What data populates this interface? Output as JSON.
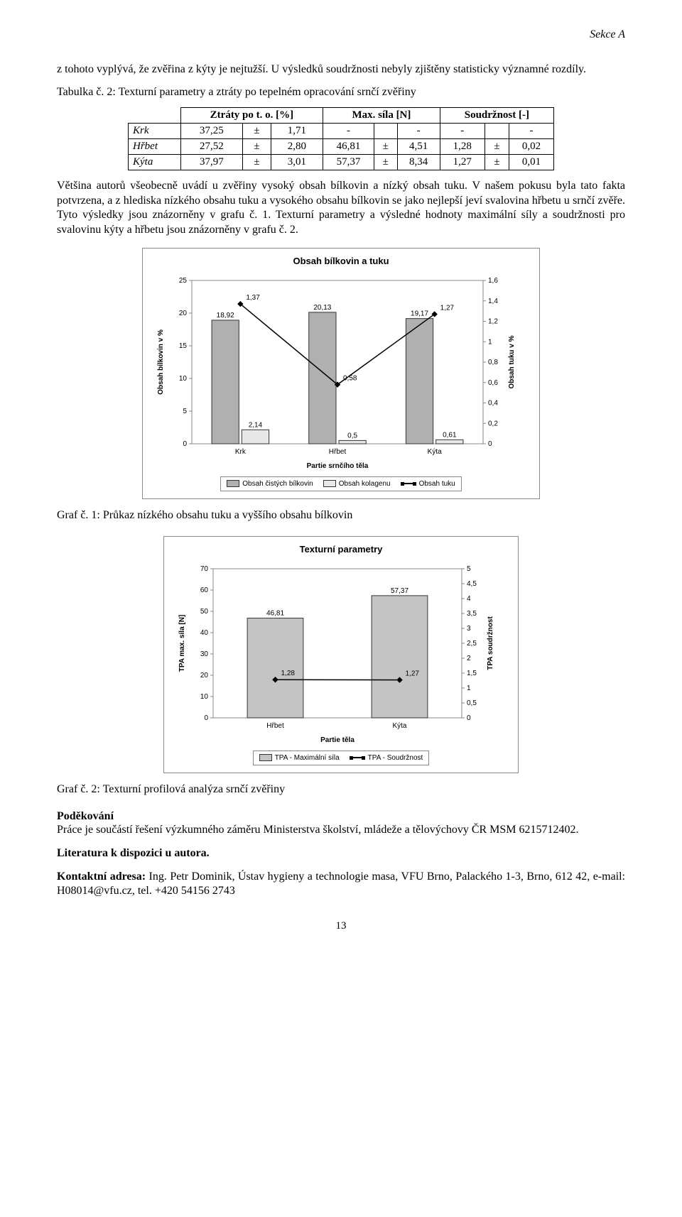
{
  "header": {
    "section": "Sekce A"
  },
  "para1": "z tohoto vyplývá, že zvěřina z kýty je nejtužší. U výsledků soudržnosti nebyly zjištěny statisticky významné rozdíly.",
  "table_caption": "Tabulka č. 2: Texturní parametry a ztráty po tepelném opracování srnčí zvěřiny",
  "table": {
    "col1": "Ztráty po t. o. [%]",
    "col2": "Max. síla [N]",
    "col3": "Soudržnost [-]",
    "rows": [
      {
        "label": "Krk",
        "v1": "37,25",
        "pm1": "±",
        "d1": "1,71",
        "v2": "-",
        "pm2": "",
        "d2": "-",
        "v3": "-",
        "pm3": "",
        "d3": "-"
      },
      {
        "label": "Hřbet",
        "v1": "27,52",
        "pm1": "±",
        "d1": "2,80",
        "v2": "46,81",
        "pm2": "±",
        "d2": "4,51",
        "v3": "1,28",
        "pm3": "±",
        "d3": "0,02"
      },
      {
        "label": "Kýta",
        "v1": "37,97",
        "pm1": "±",
        "d1": "3,01",
        "v2": "57,37",
        "pm2": "±",
        "d2": "8,34",
        "v3": "1,27",
        "pm3": "±",
        "d3": "0,01"
      }
    ]
  },
  "para2": "Většina autorů všeobecně uvádí u zvěřiny vysoký obsah bílkovin a nízký obsah tuku. V našem pokusu byla tato fakta potvrzena, a z hlediska nízkého obsahu tuku a vysokého obsahu bílkovin se jako nejlepší jeví svalovina hřbetu u srnčí zvěře. Tyto výsledky jsou znázorněny v grafu č. 1. Texturní parametry a výsledné hodnoty maximální síly a soudržnosti pro svalovinu kýty a hřbetu jsou znázorněny v grafu č. 2.",
  "chart1": {
    "type": "bar+line",
    "title": "Obsah bílkovin a tuku",
    "categories": [
      "Krk",
      "Hřbet",
      "Kýta"
    ],
    "bar1_values": [
      18.92,
      20.13,
      19.17
    ],
    "bar1_labels": [
      "18,92",
      "20,13",
      "19,17"
    ],
    "bar2_values": [
      2.14,
      0.5,
      0.61
    ],
    "bar2_labels": [
      "2,14",
      "0,5",
      "0,61"
    ],
    "line_values": [
      1.37,
      0.58,
      1.27
    ],
    "line_labels": [
      "1,37",
      "0,58",
      "1,27"
    ],
    "y1_label": "Obsah bílkovin v %",
    "y2_label": "Obsah tuku v %",
    "x_label": "Partie srnčího těla",
    "y1_ticks": [
      0,
      5,
      10,
      15,
      20,
      25
    ],
    "y2_ticks": [
      "0",
      "0,2",
      "0,4",
      "0,6",
      "0,8",
      "1",
      "1,2",
      "1,4",
      "1,6"
    ],
    "y1_max": 25,
    "y2_max": 1.6,
    "bar1_color": "#b0b0b0",
    "bar2_color": "#e8e8e8",
    "line_color": "#000000",
    "border_color": "#333333",
    "legend": [
      "Obsah čistých bílkovin",
      "Obsah kolagenu",
      "Obsah tuku"
    ]
  },
  "caption1": "Graf č. 1: Průkaz nízkého obsahu tuku a vyššího obsahu bílkovin",
  "chart2": {
    "type": "bar+line",
    "title": "Texturní parametry",
    "categories": [
      "Hřbet",
      "Kýta"
    ],
    "bar_values": [
      46.81,
      57.37
    ],
    "bar_labels": [
      "46,81",
      "57,37"
    ],
    "line_values": [
      1.28,
      1.27
    ],
    "line_labels": [
      "1,28",
      "1,27"
    ],
    "y1_label": "TPA max. síla [N]",
    "y2_label": "TPA soudržnost",
    "x_label": "Partie těla",
    "y1_ticks": [
      0,
      10,
      20,
      30,
      40,
      50,
      60,
      70
    ],
    "y2_ticks": [
      "0",
      "0,5",
      "1",
      "1,5",
      "2",
      "2,5",
      "3",
      "3,5",
      "4",
      "4,5",
      "5"
    ],
    "y1_max": 70,
    "y2_max": 5,
    "bar_color": "#c4c4c4",
    "line_color": "#000000",
    "border_color": "#333333",
    "legend": [
      "TPA - Maximální síla",
      "TPA - Soudržnost"
    ]
  },
  "caption2": "Graf č. 2: Texturní profilová analýza srnčí zvěřiny",
  "thanks_head": "Poděkování",
  "thanks_body": "Práce je součástí řešení výzkumného záměru Ministerstva školství, mládeže a tělovýchovy ČR MSM 6215712402.",
  "lit": "Literatura k dispozici u autora.",
  "contact_head": "Kontaktní adresa: ",
  "contact_body": "Ing. Petr Dominik, Ústav hygieny a technologie masa, VFU Brno, Palackého 1-3, Brno, 612 42, e-mail: H08014@vfu.cz, tel. +420 54156 2743",
  "page_number": "13"
}
